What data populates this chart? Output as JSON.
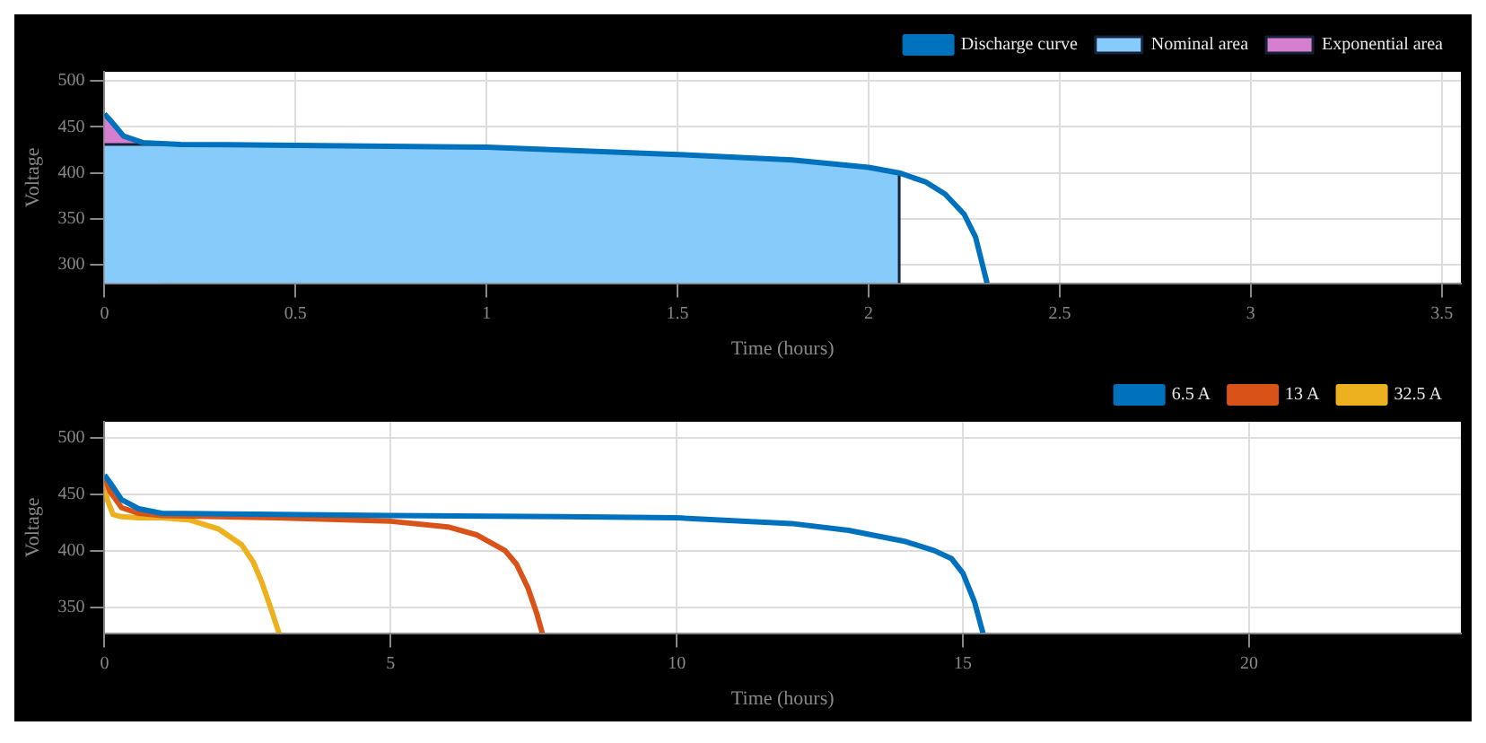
{
  "chart_data": [
    {
      "type": "line",
      "xlabel": "Time (hours)",
      "ylabel": "Voltage",
      "xlim": [
        0,
        3.55
      ],
      "xticks": [
        0,
        0.5,
        1,
        1.5,
        2,
        2.5,
        3,
        3.5
      ],
      "ylim": [
        280,
        510
      ],
      "yticks": [
        300,
        350,
        400,
        450,
        500
      ],
      "grid": true,
      "legend": "top right",
      "marker": "none",
      "series": [
        {
          "name": "Discharge curve",
          "type": "line",
          "color": "#0072bd",
          "x": [
            0,
            0.02,
            0.05,
            0.1,
            0.2,
            0.5,
            1,
            1.5,
            1.8,
            2.0,
            2.08,
            2.15,
            2.2,
            2.25,
            2.28,
            2.31
          ],
          "values": [
            464,
            455,
            440,
            433,
            431,
            430,
            428,
            420,
            414,
            406,
            400,
            390,
            377,
            355,
            330,
            280
          ]
        },
        {
          "name": "Nominal area",
          "type": "area",
          "color": "#87cbfa",
          "x": [
            0,
            0.1,
            0.2,
            0.5,
            1,
            1.5,
            1.8,
            2.0,
            2.08,
            2.08
          ],
          "values": [
            431,
            431,
            431,
            430,
            428,
            420,
            414,
            406,
            400,
            280
          ]
        },
        {
          "name": "Exponential area",
          "type": "area",
          "color": "#d77fcf",
          "x": [
            0,
            0.02,
            0.05,
            0.1,
            0.15
          ],
          "values": [
            464,
            455,
            440,
            433,
            431
          ]
        }
      ]
    },
    {
      "type": "line",
      "xlabel": "Time (hours)",
      "ylabel": "Voltage",
      "xlim": [
        0,
        23.7
      ],
      "xticks": [
        0,
        5,
        10,
        15,
        20
      ],
      "ylim": [
        327,
        514
      ],
      "yticks": [
        350,
        400,
        450,
        500
      ],
      "grid": true,
      "legend": "top right",
      "marker": "none",
      "series": [
        {
          "name": "6.5 A",
          "color": "#0072bd",
          "x": [
            0,
            0.1,
            0.3,
            0.6,
            1,
            3,
            5,
            8,
            10,
            12,
            13,
            14,
            14.5,
            14.8,
            15,
            15.2,
            15.35
          ],
          "values": [
            467,
            460,
            445,
            437,
            433,
            432,
            431,
            430,
            429,
            424,
            418,
            408,
            400,
            393,
            380,
            355,
            327
          ]
        },
        {
          "name": "13 A",
          "color": "#d95319",
          "x": [
            0,
            0.1,
            0.3,
            0.6,
            1,
            3,
            5,
            6,
            6.5,
            7,
            7.2,
            7.4,
            7.55,
            7.65
          ],
          "values": [
            465,
            452,
            438,
            433,
            431,
            429,
            426,
            421,
            414,
            400,
            388,
            367,
            345,
            327
          ]
        },
        {
          "name": "32.5 A",
          "color": "#edb120",
          "x": [
            0,
            0.05,
            0.15,
            0.3,
            0.6,
            1,
            1.5,
            2,
            2.4,
            2.6,
            2.75,
            2.9,
            3.05
          ],
          "values": [
            460,
            445,
            432,
            430,
            429,
            429,
            427,
            419,
            405,
            390,
            372,
            350,
            327
          ]
        }
      ]
    }
  ]
}
